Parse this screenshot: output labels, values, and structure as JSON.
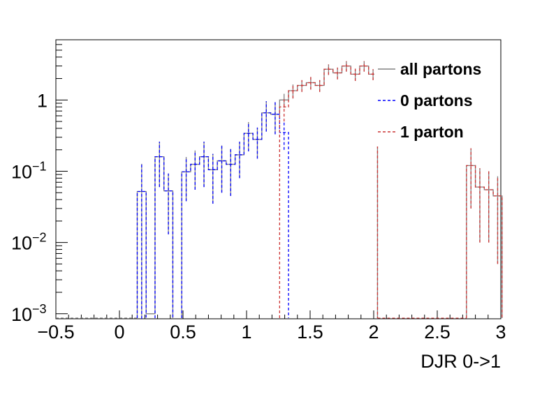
{
  "chart_data": {
    "type": "line",
    "title": "",
    "xlabel": "DJR 0->1",
    "ylabel": "",
    "xlim": [
      -0.5,
      3.0
    ],
    "ylim": [
      0.00085,
      7.0
    ],
    "log_y": true,
    "grid": false,
    "legend_position": "top-right",
    "x_ticks": [
      "−0.5",
      "0",
      "0.5",
      "1",
      "1.5",
      "2",
      "2.5",
      "3"
    ],
    "x_tick_values": [
      -0.5,
      0,
      0.5,
      1,
      1.5,
      2,
      2.5,
      3
    ],
    "y_ticks": [
      {
        "value": 0.001,
        "base": "10",
        "exp": "−3"
      },
      {
        "value": 0.01,
        "base": "10",
        "exp": "−2"
      },
      {
        "value": 0.1,
        "base": "10",
        "exp": "−1"
      },
      {
        "value": 1,
        "base": "1",
        "exp": ""
      }
    ],
    "bin_width": 0.07,
    "series": [
      {
        "name": "all partons",
        "color": "#808080",
        "dash": "none",
        "bins": [
          [
            0.14,
            0.052,
            0.075
          ],
          [
            0.21,
            0.001,
            0
          ],
          [
            0.28,
            0.16,
            0.1
          ],
          [
            0.35,
            0.053,
            0.04
          ],
          [
            0.49,
            0.098,
            0.06
          ],
          [
            0.56,
            0.125,
            0.07
          ],
          [
            0.63,
            0.16,
            0.1
          ],
          [
            0.7,
            0.105,
            0.07
          ],
          [
            0.77,
            0.14,
            0.09
          ],
          [
            0.84,
            0.125,
            0.08
          ],
          [
            0.91,
            0.17,
            0.09
          ],
          [
            0.98,
            0.34,
            0.15
          ],
          [
            1.05,
            0.28,
            0.13
          ],
          [
            1.12,
            0.66,
            0.3
          ],
          [
            1.19,
            0.63,
            0.3
          ],
          [
            1.26,
            1.0,
            0.22
          ],
          [
            1.33,
            1.35,
            0.3
          ],
          [
            1.4,
            1.6,
            0.3
          ],
          [
            1.47,
            1.75,
            0.35
          ],
          [
            1.54,
            1.6,
            0.3
          ],
          [
            1.61,
            2.7,
            0.45
          ],
          [
            1.68,
            2.4,
            0.45
          ],
          [
            1.75,
            3.0,
            0.5
          ],
          [
            1.82,
            2.3,
            0.45
          ],
          [
            1.89,
            3.0,
            0.5
          ],
          [
            1.96,
            2.3,
            0.4
          ],
          [
            2.73,
            0.12,
            0.09
          ],
          [
            2.8,
            0.06,
            0.05
          ],
          [
            2.87,
            0.055,
            0.045
          ],
          [
            2.94,
            0.045,
            0.04
          ]
        ]
      },
      {
        "name": "0 partons",
        "color": "#0000ff",
        "dash": "4,3",
        "bins": [
          [
            0.14,
            0.052,
            0.075
          ],
          [
            0.28,
            0.16,
            0.1
          ],
          [
            0.35,
            0.053,
            0.04
          ],
          [
            0.49,
            0.098,
            0.06
          ],
          [
            0.56,
            0.125,
            0.07
          ],
          [
            0.63,
            0.16,
            0.1
          ],
          [
            0.7,
            0.105,
            0.07
          ],
          [
            0.77,
            0.14,
            0.09
          ],
          [
            0.84,
            0.125,
            0.08
          ],
          [
            0.91,
            0.17,
            0.09
          ],
          [
            0.98,
            0.34,
            0.15
          ],
          [
            1.05,
            0.28,
            0.13
          ],
          [
            1.12,
            0.66,
            0.3
          ],
          [
            1.19,
            0.63,
            0.3
          ],
          [
            1.26,
            0.35,
            0.15
          ]
        ]
      },
      {
        "name": "1 parton",
        "color": "#cc3333",
        "dash": "4,3",
        "bins": [
          [
            1.26,
            0.8,
            0.3
          ],
          [
            1.33,
            1.35,
            0.3
          ],
          [
            1.4,
            1.6,
            0.3
          ],
          [
            1.47,
            1.75,
            0.35
          ],
          [
            1.54,
            1.6,
            0.3
          ],
          [
            1.61,
            2.7,
            0.45
          ],
          [
            1.68,
            2.4,
            0.45
          ],
          [
            1.75,
            3.0,
            0.5
          ],
          [
            1.82,
            2.3,
            0.45
          ],
          [
            1.89,
            3.0,
            0.5
          ],
          [
            1.96,
            2.3,
            0.4
          ],
          [
            2.73,
            0.12,
            0.09
          ],
          [
            2.8,
            0.06,
            0.05
          ],
          [
            2.87,
            0.055,
            0.045
          ],
          [
            2.94,
            0.045,
            0.04
          ]
        ]
      }
    ]
  }
}
